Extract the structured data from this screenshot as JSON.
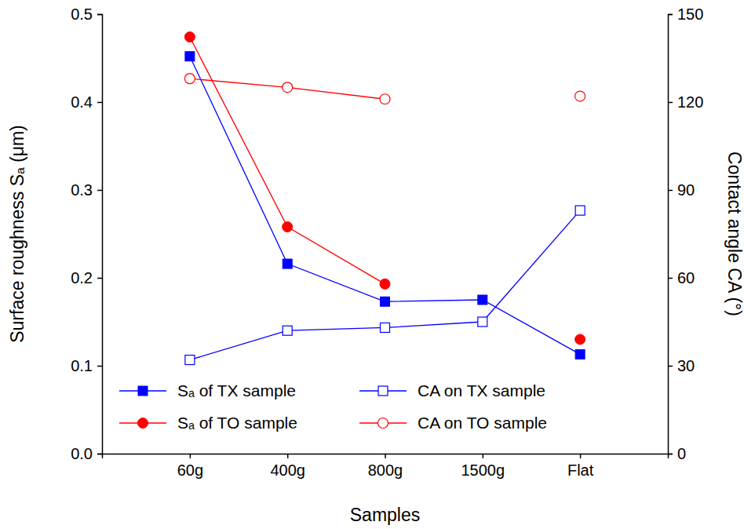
{
  "chart_data": {
    "type": "line",
    "x_label": "Samples",
    "y_label": "Surface roughness Sₐ (μm)",
    "y2_label": "Contact angle CA (°)",
    "categories": [
      "60g",
      "400g",
      "800g",
      "1500g",
      "Flat"
    ],
    "ylim": [
      0,
      0.5
    ],
    "yticks": [
      {
        "value": 0,
        "label": "0.0"
      },
      0.1,
      0.2,
      0.3,
      0.4,
      0.5
    ],
    "y2lim": [
      0,
      150
    ],
    "y2ticks": [
      0,
      30,
      60,
      90,
      120,
      150
    ],
    "legend": "lower left",
    "series": [
      {
        "name": "Sₐ of TX sample",
        "color": "#0000ff",
        "marker": "square",
        "values": [
          0.452,
          0.216,
          0.173,
          0.175,
          0.113
        ]
      },
      {
        "name": "Sₐ of TO sample",
        "color": "#ff0000",
        "marker": "circle",
        "values": [
          0.474,
          0.258,
          0.193,
          null,
          0.13
        ]
      },
      {
        "name": "CA on TX sample",
        "color": "#0000ff",
        "marker": "open-square",
        "axis": "y2",
        "values": [
          32,
          42,
          43,
          45,
          83
        ]
      },
      {
        "name": "CA on TO sample",
        "color": "#ff0000",
        "marker": "open-circle",
        "axis": "y2",
        "values": [
          128,
          125,
          121,
          null,
          122
        ]
      }
    ]
  }
}
